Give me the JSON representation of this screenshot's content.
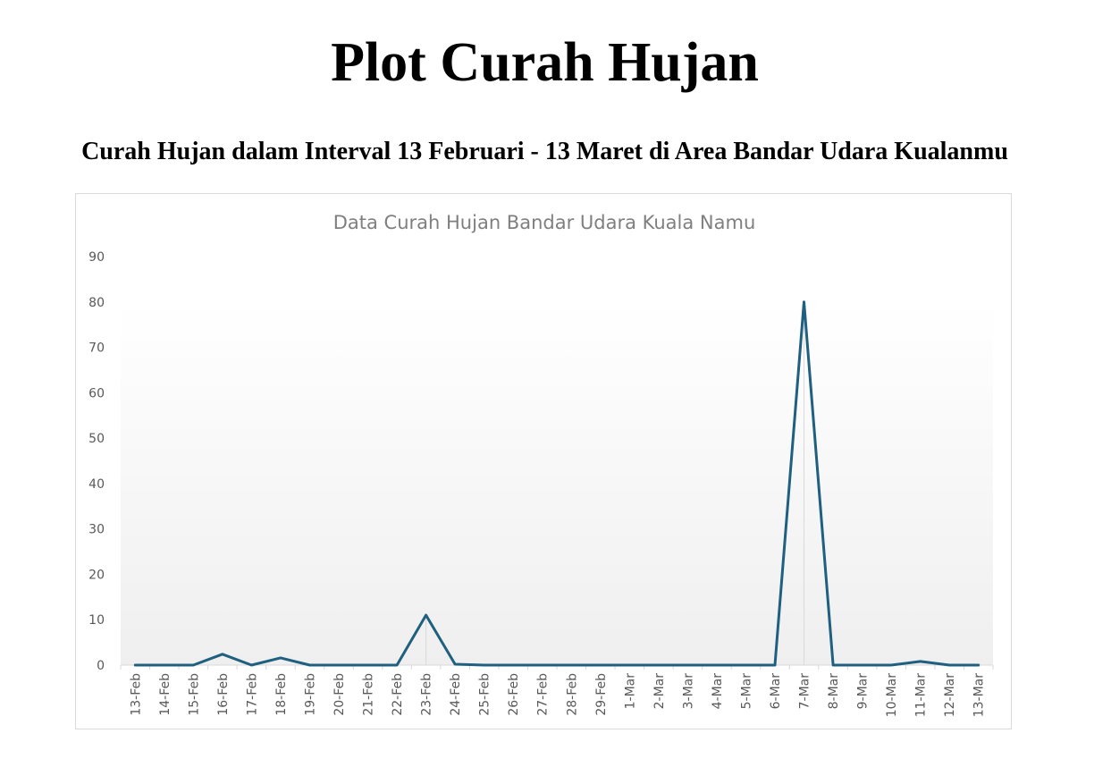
{
  "page": {
    "title": "Plot Curah Hujan",
    "subtitle": "Curah Hujan dalam Interval 13 Februari - 13 Maret di Area Bandar Udara Kualanmu"
  },
  "chart_data": {
    "type": "line",
    "title": "Data Curah Hujan Bandar Udara Kuala Namu",
    "xlabel": "",
    "ylabel": "",
    "ylim": [
      0,
      90
    ],
    "yticks": [
      0,
      10,
      20,
      30,
      40,
      50,
      60,
      70,
      80,
      90
    ],
    "grid": false,
    "legend": "none",
    "line_color": "#1f5f7f",
    "categories": [
      "13-Feb",
      "14-Feb",
      "15-Feb",
      "16-Feb",
      "17-Feb",
      "18-Feb",
      "19-Feb",
      "20-Feb",
      "21-Feb",
      "22-Feb",
      "23-Feb",
      "24-Feb",
      "25-Feb",
      "26-Feb",
      "27-Feb",
      "28-Feb",
      "29-Feb",
      "1-Mar",
      "2-Mar",
      "3-Mar",
      "4-Mar",
      "5-Mar",
      "6-Mar",
      "7-Mar",
      "8-Mar",
      "9-Mar",
      "10-Mar",
      "11-Mar",
      "12-Mar",
      "13-Mar"
    ],
    "series": [
      {
        "values": [
          0,
          0,
          0,
          2.4,
          0,
          1.6,
          0,
          0,
          0,
          0,
          11,
          0.2,
          0,
          0,
          0,
          0,
          0,
          0,
          0,
          0,
          0,
          0,
          0,
          80,
          0,
          0,
          0,
          0.8,
          0,
          0
        ]
      }
    ]
  }
}
